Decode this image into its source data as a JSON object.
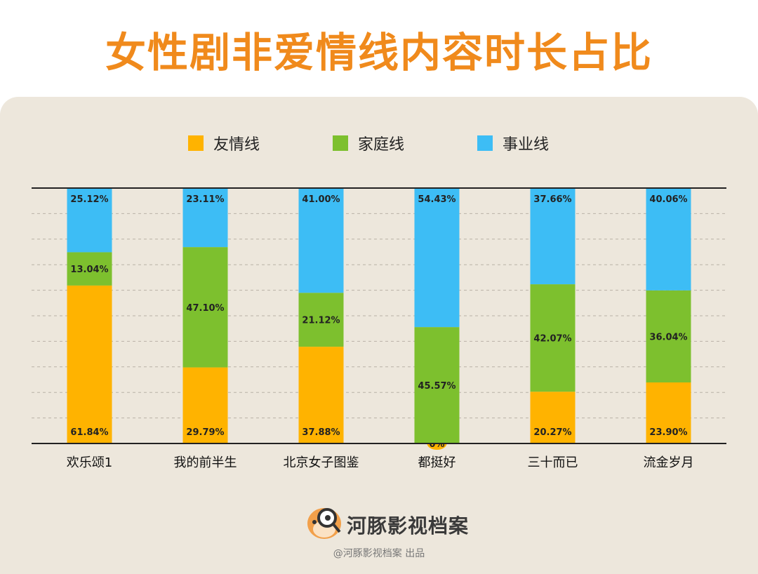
{
  "page": {
    "title": "女性剧非爱情线内容时长占比",
    "brand_name": "河豚影视档案",
    "credit": "@河豚影视档案 出品"
  },
  "colors": {
    "friendship": "#ffb300",
    "family": "#7dc02e",
    "career": "#3dbdf5",
    "title": "#f08a1c"
  },
  "chart_data": {
    "type": "bar",
    "stacked": true,
    "categories": [
      "欢乐颂1",
      "我的前半生",
      "北京女子图鉴",
      "都挺好",
      "三十而已",
      "流金岁月"
    ],
    "series": [
      {
        "name": "友情线",
        "values": [
          61.84,
          29.79,
          37.88,
          0,
          20.27,
          23.9
        ],
        "labels": [
          "61.84%",
          "29.79%",
          "37.88%",
          "0%",
          "20.27%",
          "23.90%"
        ]
      },
      {
        "name": "家庭线",
        "values": [
          13.04,
          47.1,
          21.12,
          45.57,
          42.07,
          36.04
        ],
        "labels": [
          "13.04%",
          "47.10%",
          "21.12%",
          "45.57%",
          "42.07%",
          "36.04%"
        ]
      },
      {
        "name": "事业线",
        "values": [
          25.12,
          23.11,
          41.0,
          54.43,
          37.66,
          40.06
        ],
        "labels": [
          "25.12%",
          "23.11%",
          "41.00%",
          "54.43%",
          "37.66%",
          "40.06%"
        ]
      }
    ],
    "ylim": [
      0,
      100
    ],
    "grid": true,
    "legend": "top"
  }
}
